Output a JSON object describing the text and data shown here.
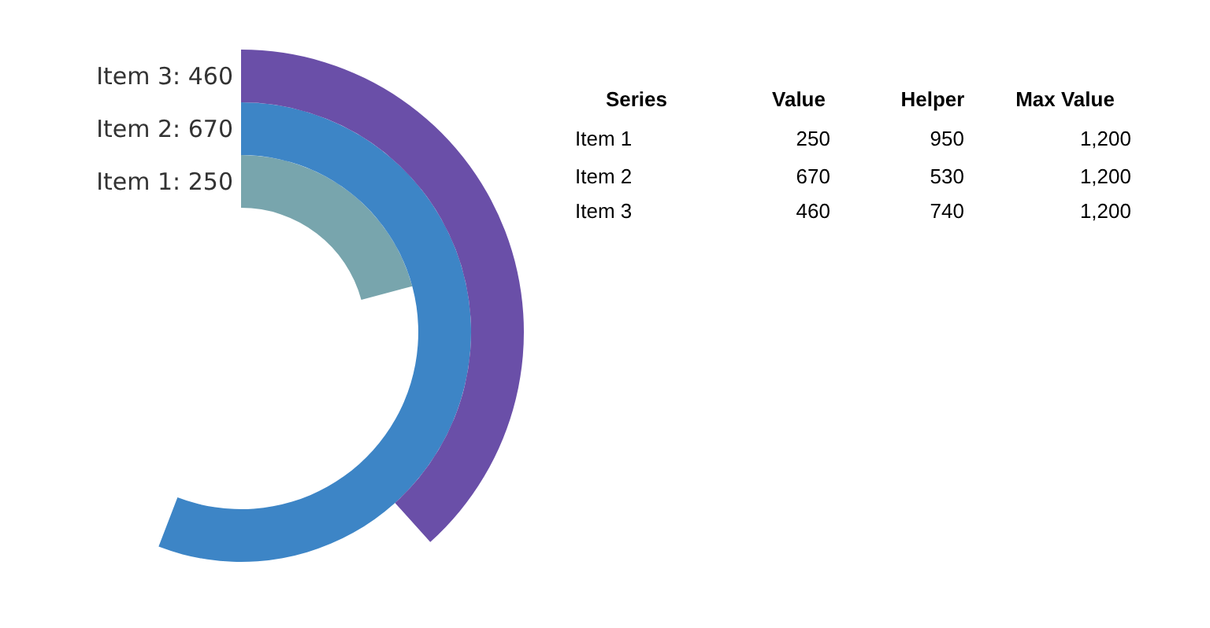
{
  "chart_data": {
    "type": "other",
    "legend_title": "Series",
    "data_labels": true,
    "categories": [
      "Item 1",
      "Item 2",
      "Item 3"
    ],
    "series": [
      {
        "name": "Value",
        "type": "bar",
        "colors": [
          "#78a5ad",
          "#3d85c6",
          "#6a4fa8"
        ],
        "values": [
          250,
          670,
          460
        ]
      },
      {
        "name": "Helper",
        "values": [
          950,
          530,
          740
        ]
      },
      {
        "name": "Max Value",
        "values": [
          1200,
          1200,
          1200
        ],
        "value_labels": [
          "1,200",
          "1,200",
          "1,200"
        ]
      }
    ],
    "annotations": [
      "Item 1: 250",
      "Item 2: 670",
      "Item 3: 460"
    ]
  }
}
